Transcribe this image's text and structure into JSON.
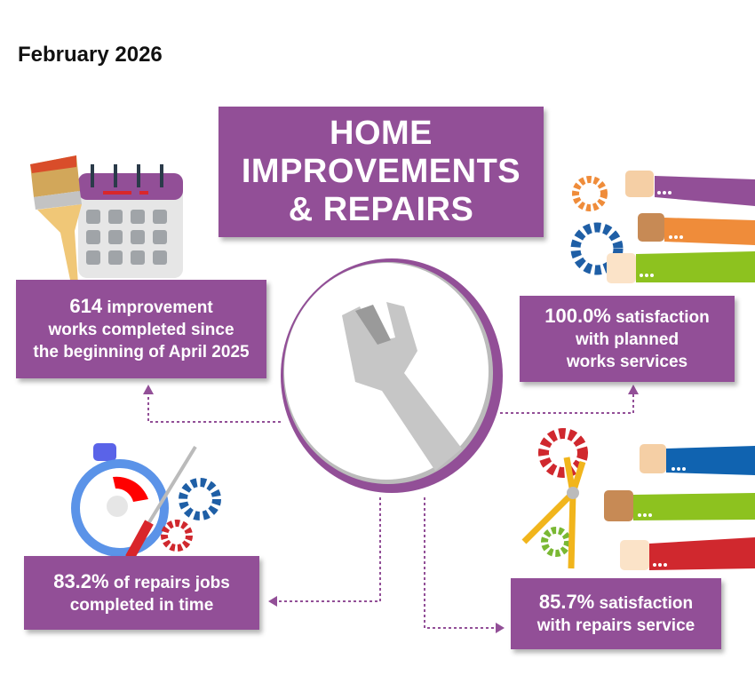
{
  "date": "February 2026",
  "title": {
    "lines": [
      "HOME",
      "IMPROVEMENTS",
      "& REPAIRS"
    ]
  },
  "colors": {
    "accent": "#924f97",
    "dotted_line": "#924f97"
  },
  "stats": [
    {
      "value": "614",
      "text_after": " improvement",
      "lines": [
        "works completed since",
        "the beginning of April 2025"
      ],
      "icon": "calendar-paintbrush-icon"
    },
    {
      "value": "100.0%",
      "text_after": " satisfaction",
      "lines": [
        "with planned",
        "works services"
      ],
      "icon": "thumbs-up-gears-icon"
    },
    {
      "value": "83.2%",
      "text_after": " of repairs jobs",
      "lines": [
        "completed in time"
      ],
      "icon": "stopwatch-screwdriver-icon"
    },
    {
      "value": "85.7%",
      "text_after": " satisfaction",
      "lines": [
        "with repairs service"
      ],
      "icon": "pliers-thumbs-up-icon"
    }
  ],
  "center_icon": "wrench-icon"
}
